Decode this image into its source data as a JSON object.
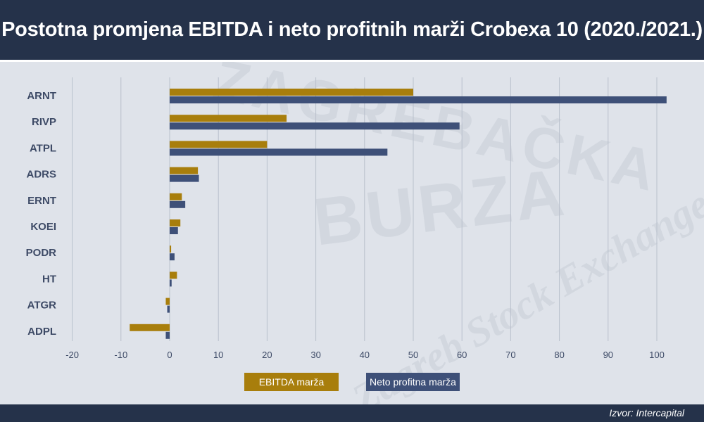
{
  "header": {
    "title": "Postotna promjena EBITDA i neto profitnih marži Crobexa 10 (2020./2021.)"
  },
  "footer": {
    "source": "Izvor: Intercapital"
  },
  "colors": {
    "ebitda": "#a87e0c",
    "neto": "#3e5078",
    "header_bg": "#25324a",
    "gridline": "#b9c0cc",
    "label": "#3d4a66"
  },
  "chart_data": {
    "type": "bar",
    "orientation": "horizontal",
    "categories": [
      "ARNT",
      "RIVP",
      "ATPL",
      "ADRS",
      "ERNT",
      "KOEI",
      "PODR",
      "HT",
      "ATGR",
      "ADPL"
    ],
    "series": [
      {
        "name": "EBITDA marža",
        "color": "#a87e0c",
        "values": [
          50,
          24,
          20,
          5.8,
          2.5,
          2.2,
          0.3,
          1.5,
          -0.8,
          -8.2
        ]
      },
      {
        "name": "Neto profitna marža",
        "color": "#3e5078",
        "values": [
          102,
          59.5,
          44.7,
          6,
          3.2,
          1.7,
          1,
          0.4,
          -0.5,
          -0.8
        ]
      }
    ],
    "xlim": [
      -20,
      102
    ],
    "xticks": [
      "-20",
      "-10",
      "0",
      "10",
      "20",
      "30",
      "40",
      "50",
      "60",
      "70",
      "80",
      "90",
      "100"
    ],
    "grid": true,
    "legend_position": "bottom-center",
    "title": "Postotna promjena EBITDA i neto profitnih marži Crobexa 10 (2020./2021.)"
  }
}
